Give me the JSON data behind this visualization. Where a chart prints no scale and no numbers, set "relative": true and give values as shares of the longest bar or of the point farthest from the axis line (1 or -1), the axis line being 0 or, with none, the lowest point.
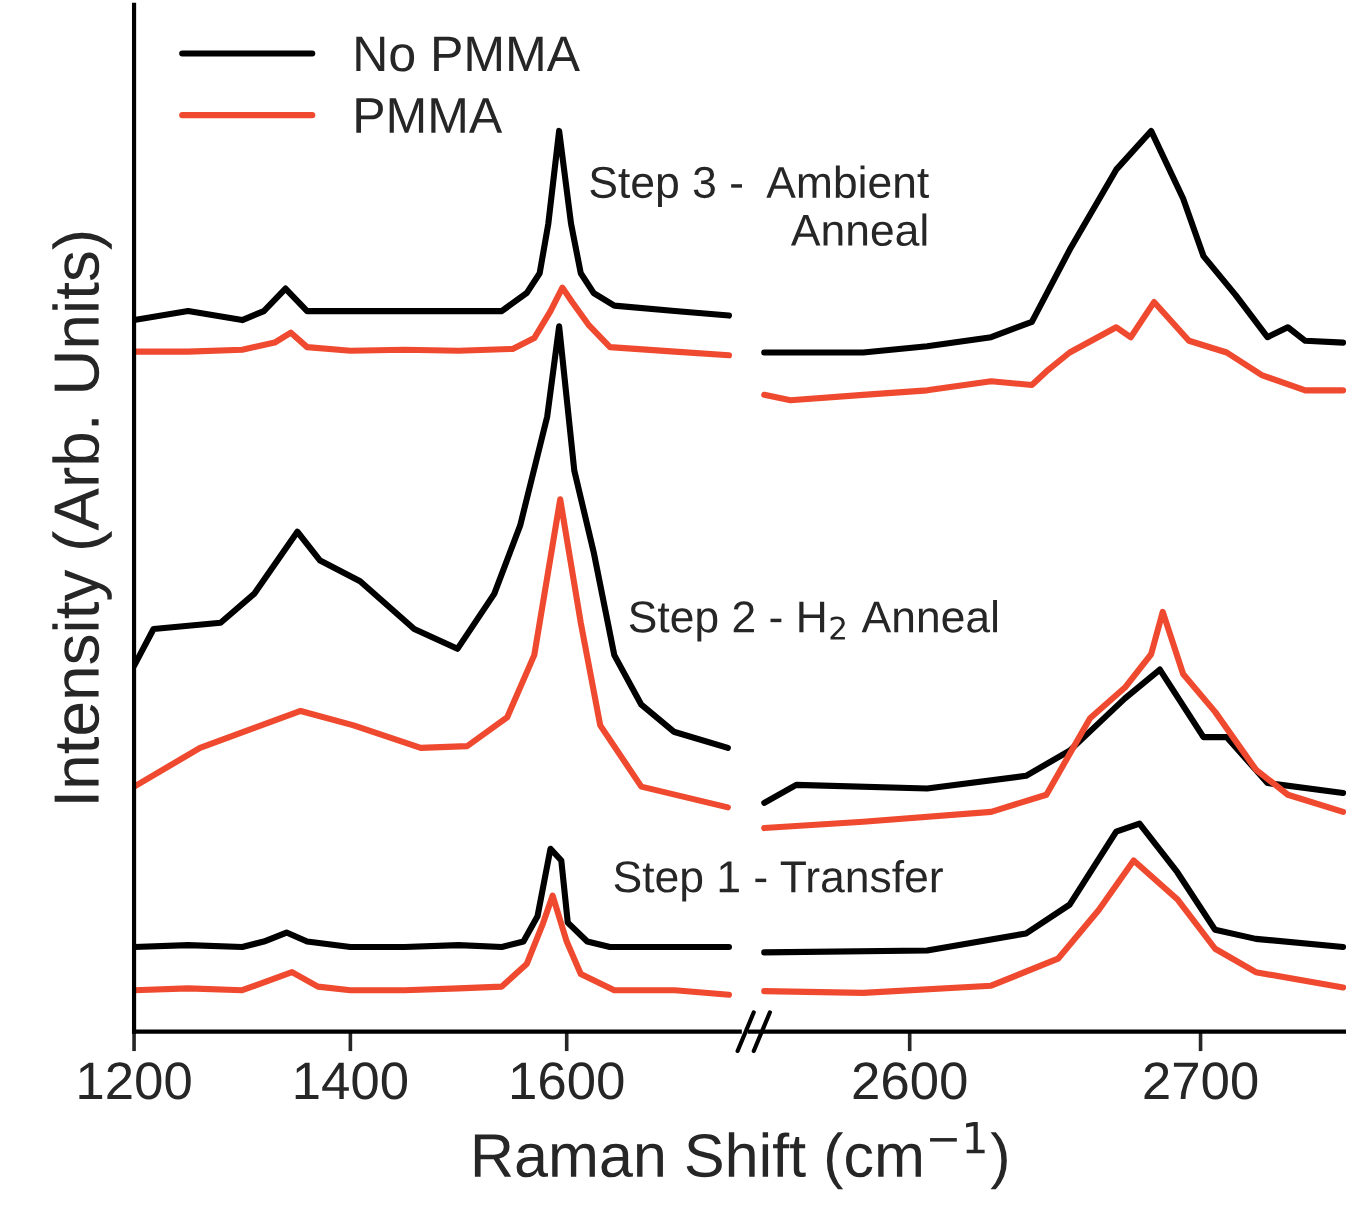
{
  "chart_data": [
    {
      "type": "line",
      "relative": true,
      "xlim": [
        1200,
        1760
      ],
      "xticks": [
        1200,
        1400,
        1600
      ],
      "tick_labels": "x",
      "legend": "top left",
      "line_style": "solid",
      "xlabel": "Raman Shift (cm$^{−1}$)",
      "ylabel": "Intensity (Arb. Units)",
      "annotations": [
        "Step 3 -  Ambient\nAnneal",
        "Step 2 - H$_{2}$ Anneal",
        "Step 1 - Transfer"
      ],
      "series": [
        {
          "name": "No PMMA",
          "color": "#000000",
          "x": [
            1200,
            1250,
            1300,
            1320,
            1341,
            1360,
            1400,
            1450,
            1500,
            1540,
            1560,
            1573,
            1585,
            1595,
            1601,
            1619,
            1640,
            1700,
            1750
          ],
          "values": [
            0.094,
            0.096,
            0.094,
            0.1,
            0.11,
            0.1,
            0.094,
            0.094,
            0.096,
            0.094,
            0.1,
            0.128,
            0.203,
            0.19,
            0.121,
            0.1,
            0.094,
            0.094,
            0.094
          ]
        },
        {
          "name": "PMMA",
          "color": "#ef4a2f",
          "x": [
            1200,
            1250,
            1300,
            1346,
            1370,
            1400,
            1450,
            1500,
            1540,
            1563,
            1578,
            1587,
            1600,
            1613,
            1644,
            1700,
            1750
          ],
          "values": [
            0.046,
            0.048,
            0.046,
            0.066,
            0.05,
            0.046,
            0.046,
            0.048,
            0.05,
            0.075,
            0.12,
            0.151,
            0.1,
            0.064,
            0.046,
            0.046,
            0.041
          ]
        },
        {
          "color": "#000000",
          "x": [
            1200,
            1218,
            1280,
            1311,
            1351,
            1372,
            1409,
            1459,
            1499,
            1533,
            1557,
            1582,
            1593,
            1607,
            1625,
            1644,
            1669,
            1699,
            1749
          ],
          "values": [
            0.406,
            0.447,
            0.454,
            0.486,
            0.555,
            0.523,
            0.5,
            0.447,
            0.425,
            0.486,
            0.562,
            0.683,
            0.783,
            0.623,
            0.532,
            0.418,
            0.363,
            0.333,
            0.315
          ]
        },
        {
          "color": "#ef4a2f",
          "x": [
            1200,
            1261,
            1354,
            1403,
            1465,
            1508,
            1545,
            1570,
            1594,
            1613,
            1631,
            1669,
            1749
          ],
          "values": [
            0.272,
            0.315,
            0.356,
            0.34,
            0.315,
            0.317,
            0.349,
            0.418,
            0.591,
            0.454,
            0.34,
            0.272,
            0.249
          ]
        },
        {
          "color": "#000000",
          "x": [
            1200,
            1250,
            1300,
            1320,
            1340,
            1360,
            1400,
            1450,
            1500,
            1540,
            1563,
            1575,
            1583,
            1593,
            1604,
            1613,
            1625,
            1644,
            1700,
            1750
          ],
          "values": [
            0.79,
            0.8,
            0.79,
            0.8,
            0.825,
            0.8,
            0.8,
            0.8,
            0.8,
            0.8,
            0.82,
            0.842,
            0.897,
            1.0,
            0.897,
            0.842,
            0.82,
            0.806,
            0.8,
            0.795
          ]
        },
        {
          "color": "#ef4a2f",
          "x": [
            1200,
            1250,
            1300,
            1330,
            1345,
            1360,
            1400,
            1450,
            1500,
            1550,
            1570,
            1585,
            1596,
            1605,
            1620,
            1640,
            1700,
            1750
          ],
          "values": [
            0.755,
            0.755,
            0.757,
            0.765,
            0.776,
            0.76,
            0.756,
            0.757,
            0.756,
            0.758,
            0.77,
            0.8,
            0.826,
            0.81,
            0.785,
            0.76,
            0.755,
            0.751
          ]
        }
      ]
    },
    {
      "type": "line",
      "relative": true,
      "xlim": [
        2545,
        2750
      ],
      "xticks": [
        2600,
        2700
      ],
      "tick_labels": "x",
      "line_style": "solid",
      "series": [
        {
          "color": "#000000",
          "x": [
            2550,
            2606,
            2640,
            2655,
            2671,
            2679,
            2692,
            2705,
            2719,
            2749
          ],
          "values": [
            0.088,
            0.09,
            0.109,
            0.141,
            0.222,
            0.231,
            0.177,
            0.113,
            0.103,
            0.094
          ]
        },
        {
          "color": "#ef4a2f",
          "x": [
            2550,
            2584,
            2628,
            2651,
            2665,
            2677,
            2692,
            2705,
            2719,
            2749
          ],
          "values": [
            0.045,
            0.043,
            0.051,
            0.081,
            0.135,
            0.19,
            0.147,
            0.092,
            0.066,
            0.049
          ]
        },
        {
          "color": "#000000",
          "x": [
            2550,
            2561,
            2606,
            2640,
            2655,
            2674,
            2686,
            2701,
            2709,
            2723,
            2749
          ],
          "values": [
            0.254,
            0.274,
            0.27,
            0.284,
            0.312,
            0.37,
            0.402,
            0.327,
            0.327,
            0.276,
            0.265
          ]
        },
        {
          "color": "#ef4a2f",
          "x": [
            2550,
            2584,
            2628,
            2647,
            2662,
            2674,
            2683,
            2687,
            2694,
            2705,
            2719,
            2730,
            2749
          ],
          "values": [
            0.226,
            0.233,
            0.244,
            0.263,
            0.348,
            0.382,
            0.419,
            0.466,
            0.397,
            0.355,
            0.291,
            0.263,
            0.244
          ]
        },
        {
          "color": "#000000",
          "x": [
            2550,
            2584,
            2606,
            2628,
            2642,
            2655,
            2671,
            2683,
            2694,
            2701,
            2712,
            2723,
            2730,
            2736,
            2749
          ],
          "values": [
            0.754,
            0.754,
            0.761,
            0.771,
            0.788,
            0.868,
            0.957,
            1.0,
            0.925,
            0.861,
            0.818,
            0.771,
            0.782,
            0.767,
            0.765
          ]
        },
        {
          "color": "#ef4a2f",
          "x": [
            2550,
            2559,
            2584,
            2606,
            2628,
            2642,
            2647,
            2655,
            2671,
            2676,
            2684,
            2696,
            2709,
            2721,
            2736,
            2749
          ],
          "values": [
            0.707,
            0.701,
            0.707,
            0.712,
            0.722,
            0.718,
            0.733,
            0.754,
            0.782,
            0.771,
            0.81,
            0.767,
            0.754,
            0.729,
            0.712,
            0.712
          ]
        }
      ]
    }
  ]
}
